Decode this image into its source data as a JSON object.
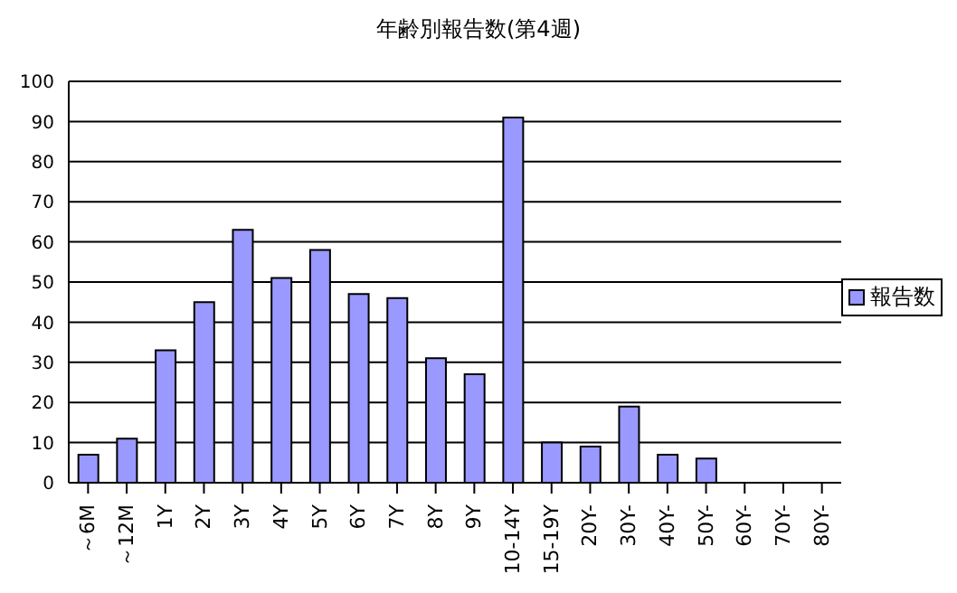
{
  "chart_data": {
    "type": "bar",
    "title": "年齢別報告数(第4週)",
    "categories": [
      "～6M",
      "～12M",
      "1Y",
      "2Y",
      "3Y",
      "4Y",
      "5Y",
      "6Y",
      "7Y",
      "8Y",
      "9Y",
      "10-14Y",
      "15-19Y",
      "20Y-",
      "30Y-",
      "40Y-",
      "50Y-",
      "60Y-",
      "70Y-",
      "80Y-"
    ],
    "series": [
      {
        "name": "報告数",
        "color": "#9999ff",
        "values": [
          7,
          11,
          33,
          45,
          63,
          51,
          58,
          47,
          46,
          31,
          27,
          91,
          10,
          9,
          19,
          7,
          6,
          0,
          0,
          0
        ]
      }
    ],
    "ylim": [
      0,
      100
    ],
    "yticks": [
      0,
      10,
      20,
      30,
      40,
      50,
      60,
      70,
      80,
      90,
      100
    ],
    "grid": "y",
    "legend": "right"
  }
}
